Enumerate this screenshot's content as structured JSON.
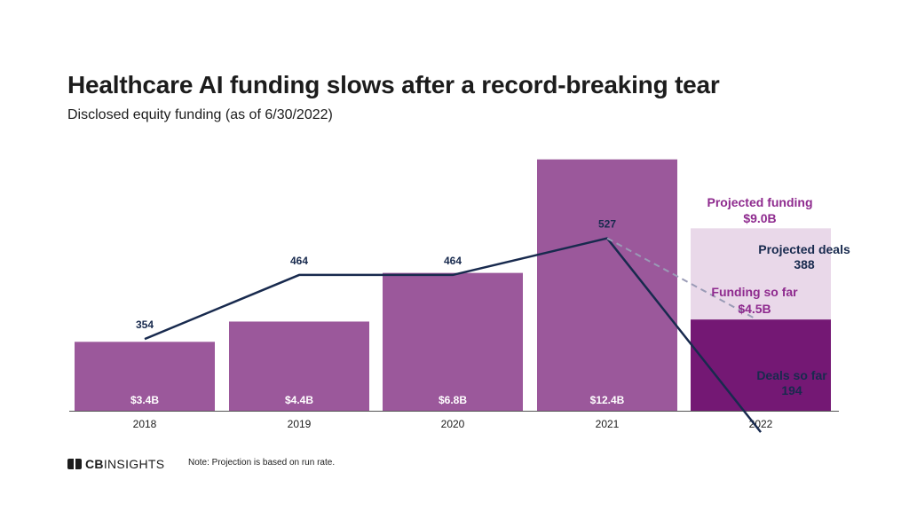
{
  "chart_data": {
    "type": "bar",
    "title": "Healthcare AI funding slows after a record-breaking tear",
    "subtitle": "Disclosed equity funding (as of 6/30/2022)",
    "categories": [
      "2018",
      "2019",
      "2020",
      "2021",
      "2022"
    ],
    "funding": {
      "values": [
        3.4,
        4.4,
        6.8,
        12.4,
        4.5
      ],
      "labels": [
        "$3.4B",
        "$4.4B",
        "$6.8B",
        "$12.4B",
        ""
      ],
      "projected_2022": 9.0
    },
    "deals": {
      "values": [
        354,
        464,
        464,
        527,
        194
      ],
      "labels": [
        "354",
        "464",
        "464",
        "527",
        ""
      ],
      "projected_2022": 388
    },
    "annotations": {
      "projected_funding": [
        "Projected funding",
        "$9.0B"
      ],
      "projected_deals": [
        "Projected deals",
        "388"
      ],
      "funding_so_far": [
        "Funding so far",
        "$4.5B"
      ],
      "deals_so_far": [
        "Deals so far",
        "194"
      ]
    },
    "colors": {
      "bar": "#9b589b",
      "bar_current": "#741874",
      "bar_projected": "#e9d8e9",
      "line": "#182a4e",
      "projected_line": "#9a9bb6",
      "funding_text": "#8e2a8e"
    },
    "grid": false,
    "legend": "none"
  },
  "footer": {
    "logo_bold": "CB",
    "logo_rest": "INSIGHTS",
    "note": "Note: Projection is based on run rate."
  }
}
